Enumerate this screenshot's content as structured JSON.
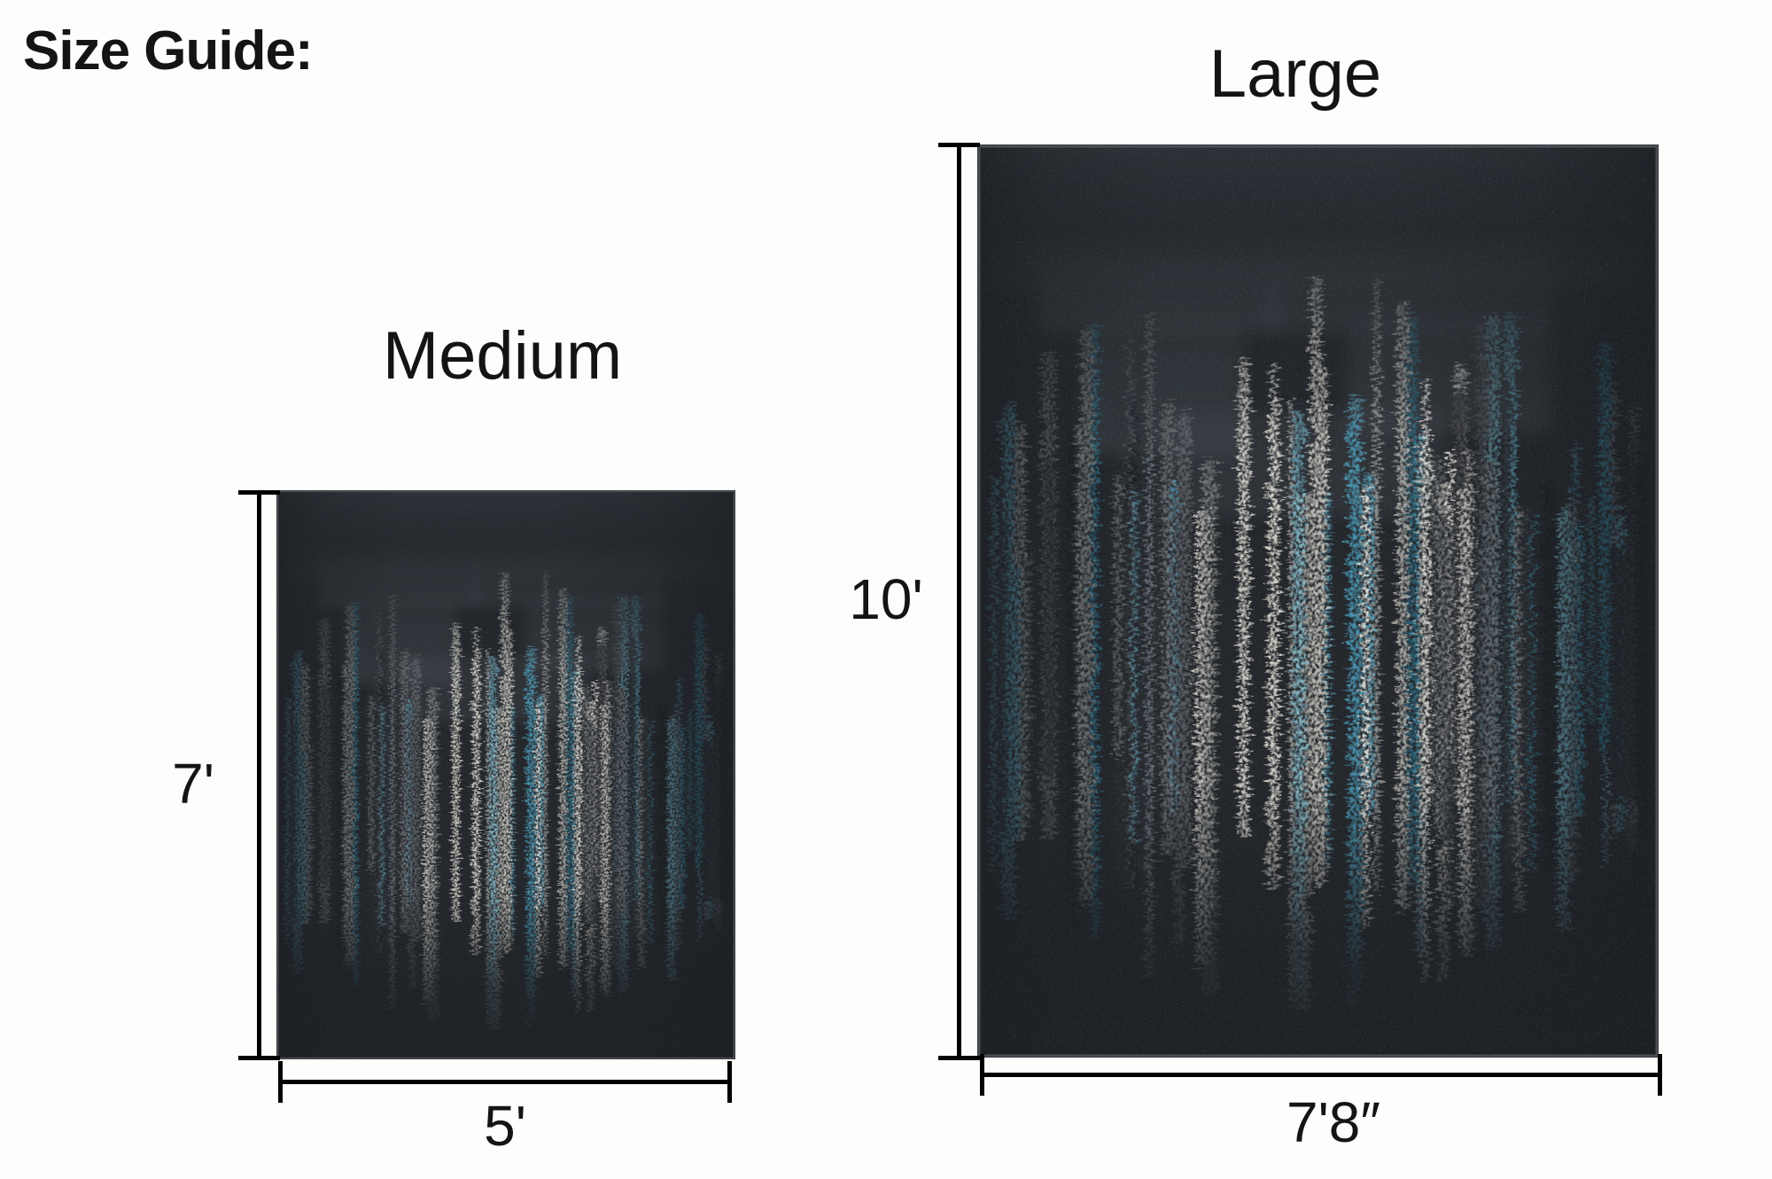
{
  "title": "Size Guide:",
  "rugs": {
    "medium": {
      "name": "Medium",
      "height": "7'",
      "width": "5'"
    },
    "large": {
      "name": "Large",
      "height": "10'",
      "width": "7'8″"
    }
  },
  "rug_palette": {
    "base_top": "#2e3238",
    "base_mid": "#24272c",
    "base_bottom": "#1f2226",
    "top_patch": "#484d54",
    "border_edge": "#53575d",
    "lights": [
      "#e6e4dd",
      "#d5d2ca",
      "#bdbbb4",
      "#cfcdc6"
    ],
    "grays": [
      "#939592",
      "#75777a",
      "#5a5d61"
    ],
    "teals": [
      "#5aa8c4",
      "#4493b0",
      "#77bdd2",
      "#2f7f9d"
    ],
    "darks": [
      "#17191d",
      "#303439"
    ]
  }
}
